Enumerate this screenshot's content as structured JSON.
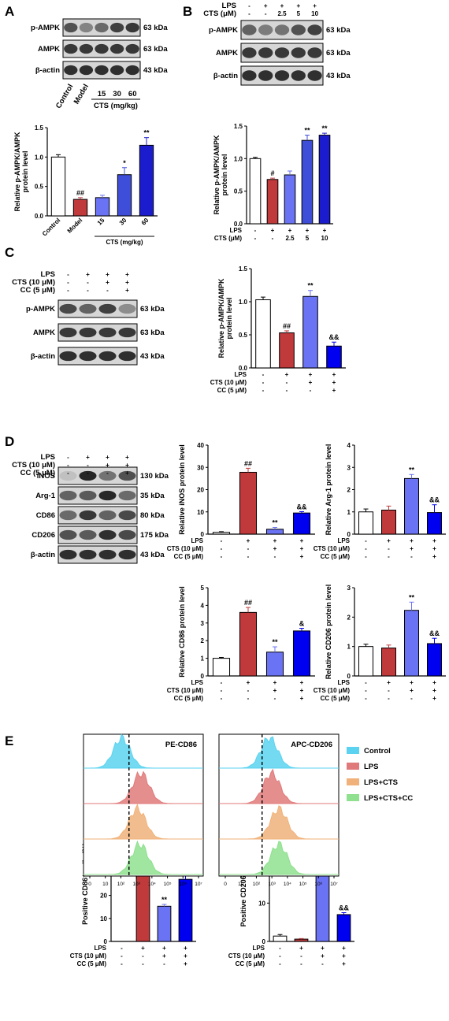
{
  "panels": {
    "A": "A",
    "B": "B",
    "C": "C",
    "D": "D",
    "E": "E"
  },
  "colors": {
    "control": "#ffffff",
    "model": "#c0393b",
    "low": "#6b73f5",
    "mid": "#3f4ed8",
    "high": "#1c1ccf",
    "pure_blue": "#0000f0",
    "cyan": "#5bd3f0",
    "salmon": "#e07a7a",
    "orange": "#f0b27a",
    "green": "#8fe08f"
  },
  "blotA": {
    "rows": [
      "p-AMPK",
      "AMPK",
      "β-actin"
    ],
    "sizes": [
      "63 kDa",
      "63 kDa",
      "43 kDa"
    ],
    "lanes": [
      "Control",
      "Model",
      "15",
      "30",
      "60"
    ],
    "group_label": "CTS (mg/kg)"
  },
  "blotB": {
    "rows": [
      "p-AMPK",
      "AMPK",
      "β-actin"
    ],
    "sizes": [
      "63 kDa",
      "63 kDa",
      "43 kDa"
    ],
    "cond_names": [
      "LPS",
      "CTS (μM)"
    ],
    "cond_vals": [
      [
        "-",
        "+",
        "+",
        "+",
        "+"
      ],
      [
        "-",
        "-",
        "2.5",
        "5",
        "10"
      ]
    ]
  },
  "blotC": {
    "rows": [
      "p-AMPK",
      "AMPK",
      "β-actin"
    ],
    "sizes": [
      "63 kDa",
      "63 kDa",
      "43 kDa"
    ],
    "cond_names": [
      "LPS",
      "CTS (10 μM)",
      "CC (5 μM)"
    ],
    "cond_vals": [
      [
        "-",
        "+",
        "+",
        "+"
      ],
      [
        "-",
        "-",
        "+",
        "+"
      ],
      [
        "-",
        "-",
        "-",
        "+"
      ]
    ]
  },
  "blotD": {
    "rows": [
      "iNOS",
      "Arg-1",
      "CD86",
      "CD206",
      "β-actin"
    ],
    "sizes": [
      "130 kDa",
      "35 kDa",
      "80 kDa",
      "175 kDa",
      "43 kDa"
    ],
    "cond_names": [
      "LPS",
      "CTS (10 μM)",
      "CC (5 μM)"
    ],
    "cond_vals": [
      [
        "-",
        "+",
        "+",
        "+"
      ],
      [
        "-",
        "-",
        "+",
        "+"
      ],
      [
        "-",
        "-",
        "-",
        "+"
      ]
    ]
  },
  "chart_data": [
    {
      "id": "A",
      "type": "bar",
      "ylabel": "Relative p-AMPK/AMPK protein level",
      "ylim": [
        0,
        1.5
      ],
      "yticks": [
        "0.0",
        "0.5",
        "1.0",
        "1.5"
      ],
      "categories": [
        "Control",
        "Model",
        "15",
        "30",
        "60"
      ],
      "xgroup": "CTS (mg/kg)",
      "values": [
        1.0,
        0.28,
        0.31,
        0.7,
        1.2
      ],
      "errors": [
        0.04,
        0.03,
        0.04,
        0.12,
        0.13
      ],
      "annotations": [
        "",
        "##",
        "",
        "*",
        "**"
      ]
    },
    {
      "id": "B",
      "type": "bar",
      "ylabel": "Relative p-AMPK/AMPK protein level",
      "ylim": [
        0,
        1.5
      ],
      "yticks": [
        "0.0",
        "0.5",
        "1.0",
        "1.5"
      ],
      "cond_names": [
        "LPS",
        "CTS (μM)"
      ],
      "cond_vals": [
        [
          "-",
          "+",
          "+",
          "+",
          "+"
        ],
        [
          "-",
          "-",
          "2.5",
          "5",
          "10"
        ]
      ],
      "values": [
        1.0,
        0.68,
        0.75,
        1.28,
        1.36
      ],
      "errors": [
        0.02,
        0.02,
        0.06,
        0.08,
        0.03
      ],
      "annotations": [
        "",
        "#",
        "",
        "**",
        "**"
      ]
    },
    {
      "id": "C",
      "type": "bar",
      "ylabel": "Relative p-AMPK/AMPK protein level",
      "ylim": [
        0,
        1.5
      ],
      "yticks": [
        "0.0",
        "0.5",
        "1.0",
        "1.5"
      ],
      "cond_names": [
        "LPS",
        "CTS (10 μM)",
        "CC (5 μM)"
      ],
      "cond_vals": [
        [
          "-",
          "+",
          "+",
          "+"
        ],
        [
          "-",
          "-",
          "+",
          "+"
        ],
        [
          "-",
          "-",
          "-",
          "+"
        ]
      ],
      "values": [
        1.03,
        0.53,
        1.08,
        0.33
      ],
      "errors": [
        0.04,
        0.03,
        0.09,
        0.06
      ],
      "annotations": [
        "",
        "##",
        "**",
        "&&"
      ]
    },
    {
      "id": "D1",
      "type": "bar",
      "ylabel": "Relative iNOS protein level",
      "ylim": [
        0,
        40
      ],
      "yticks": [
        "0",
        "10",
        "20",
        "30",
        "40"
      ],
      "cond_names": [
        "LPS",
        "CTS (10 μM)",
        "CC (5 μM)"
      ],
      "cond_vals": [
        [
          "-",
          "+",
          "+",
          "+"
        ],
        [
          "-",
          "-",
          "+",
          "+"
        ],
        [
          "-",
          "-",
          "-",
          "+"
        ]
      ],
      "values": [
        0.8,
        27.8,
        2.2,
        9.5
      ],
      "errors": [
        0.3,
        1.8,
        0.8,
        0.6
      ],
      "annotations": [
        "",
        "##",
        "**",
        "&&"
      ]
    },
    {
      "id": "D2",
      "type": "bar",
      "ylabel": "Relative Arg-1 protein level",
      "ylim": [
        0,
        4
      ],
      "yticks": [
        "0",
        "1",
        "2",
        "3",
        "4"
      ],
      "cond_names": [
        "LPS",
        "CTS (10 μM)",
        "CC (5 μM)"
      ],
      "cond_vals": [
        [
          "-",
          "+",
          "+",
          "+"
        ],
        [
          "-",
          "-",
          "+",
          "+"
        ],
        [
          "-",
          "-",
          "-",
          "+"
        ]
      ],
      "values": [
        1.0,
        1.08,
        2.5,
        0.97
      ],
      "errors": [
        0.13,
        0.18,
        0.18,
        0.35
      ],
      "annotations": [
        "",
        "",
        "**",
        "&&"
      ]
    },
    {
      "id": "D3",
      "type": "bar",
      "ylabel": "Relative CD86 protein level",
      "ylim": [
        0,
        5
      ],
      "yticks": [
        "0",
        "1",
        "2",
        "3",
        "4",
        "5"
      ],
      "cond_names": [
        "LPS",
        "CTS (10 μM)",
        "CC (5 μM)"
      ],
      "cond_vals": [
        [
          "-",
          "+",
          "+",
          "+"
        ],
        [
          "-",
          "-",
          "+",
          "+"
        ],
        [
          "-",
          "-",
          "-",
          "+"
        ]
      ],
      "values": [
        1.0,
        3.6,
        1.35,
        2.55
      ],
      "errors": [
        0.05,
        0.28,
        0.3,
        0.15
      ],
      "annotations": [
        "",
        "##",
        "**",
        "&"
      ]
    },
    {
      "id": "D4",
      "type": "bar",
      "ylabel": "Relative CD206 protein level",
      "ylim": [
        0,
        3
      ],
      "yticks": [
        "0",
        "1",
        "2",
        "3"
      ],
      "cond_names": [
        "LPS",
        "CTS (10 μM)",
        "CC (5 μM)"
      ],
      "cond_vals": [
        [
          "-",
          "+",
          "+",
          "+"
        ],
        [
          "-",
          "-",
          "+",
          "+"
        ],
        [
          "-",
          "-",
          "-",
          "+"
        ]
      ],
      "values": [
        1.0,
        0.95,
        2.23,
        1.1
      ],
      "errors": [
        0.08,
        0.1,
        0.28,
        0.18
      ],
      "annotations": [
        "",
        "",
        "**",
        "&&"
      ]
    },
    {
      "id": "E1",
      "type": "bar",
      "ylabel": "Positive CD86⁺ cells (%)",
      "ylim": [
        0,
        50
      ],
      "yticks": [
        "0",
        "10",
        "20",
        "30",
        "40",
        "50"
      ],
      "cond_names": [
        "LPS",
        "CTS (10 μM)",
        "CC (5 μM)"
      ],
      "cond_vals": [
        [
          "-",
          "+",
          "+",
          "+"
        ],
        [
          "-",
          "-",
          "+",
          "+"
        ],
        [
          "-",
          "-",
          "-",
          "+"
        ]
      ],
      "values": [
        0,
        42,
        15.3,
        27
      ],
      "errors": [
        0,
        1.5,
        0.8,
        2.5
      ],
      "annotations": [
        "",
        "##",
        "**",
        "&&"
      ]
    },
    {
      "id": "E2",
      "type": "bar",
      "ylabel": "Positive CD206⁺ cells (%)",
      "ylim": [
        0,
        30
      ],
      "yticks": [
        "0",
        "10",
        "20",
        "30"
      ],
      "cond_names": [
        "LPS",
        "CTS (10 μM)",
        "CC (5 μM)"
      ],
      "cond_vals": [
        [
          "-",
          "+",
          "+",
          "+"
        ],
        [
          "-",
          "-",
          "+",
          "+"
        ],
        [
          "-",
          "-",
          "-",
          "+"
        ]
      ],
      "values": [
        1.4,
        0.6,
        23.7,
        7.0
      ],
      "errors": [
        0.4,
        0.15,
        0.4,
        0.5
      ],
      "annotations": [
        "",
        "",
        "**",
        "&&"
      ]
    }
  ],
  "flow": {
    "plots": [
      {
        "title": "PE-CD86",
        "peaks": [
          0.32,
          0.48,
          0.45,
          0.47
        ]
      },
      {
        "title": "APC-CD206",
        "peaks": [
          0.42,
          0.44,
          0.5,
          0.5
        ]
      }
    ],
    "xticks": [
      "0",
      "10",
      "10²",
      "10³",
      "10⁴",
      "10⁵",
      "10⁶",
      "10⁷"
    ],
    "legend": [
      "Control",
      "LPS",
      "LPS+CTS",
      "LPS+CTS+CC"
    ]
  }
}
